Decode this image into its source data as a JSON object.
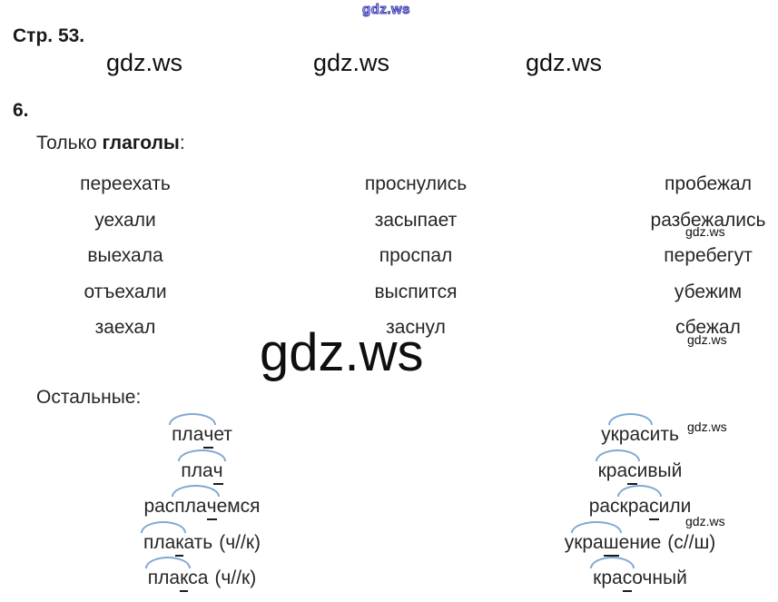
{
  "watermark": {
    "text": "gdz.ws"
  },
  "page": {
    "title": "Стр. 53.",
    "section": "6."
  },
  "verbs": {
    "label": {
      "prefix": "Только ",
      "bold": "глаголы",
      "suffix": ":"
    },
    "columns": [
      [
        "переехать",
        "уехали",
        "выехала",
        "отъехали",
        "заехал"
      ],
      [
        "проснулись",
        "засыпает",
        "проспал",
        "выспится",
        "заснул"
      ],
      [
        "пробежал",
        "разбежались",
        "перебегут",
        "убежим",
        "сбежал"
      ]
    ]
  },
  "others": {
    "label": "Остальные:",
    "left": [
      {
        "pre": "",
        "root": "плач",
        "post": "ет",
        "note": "",
        "underline_last": true
      },
      {
        "pre": "",
        "root": "плач",
        "post": "",
        "note": "",
        "underline_last": true
      },
      {
        "pre": "рас",
        "root": "плач",
        "post": "емся",
        "note": "",
        "underline_last": true
      },
      {
        "pre": "",
        "root": "плак",
        "post": "ать",
        "note": "(ч//к)",
        "underline_last": true
      },
      {
        "pre": "",
        "root": "плак",
        "post": "са",
        "note": "(ч//к)",
        "underline_last": true
      }
    ],
    "right": [
      {
        "pre": "у",
        "root": "крас",
        "post": "ить",
        "note": "",
        "underline_last": false
      },
      {
        "pre": "",
        "root": "крас",
        "post": "ивый",
        "note": "",
        "underline_last": true
      },
      {
        "pre": "рас",
        "root": "крас",
        "post": "или",
        "note": "",
        "underline_last": true
      },
      {
        "pre": "у",
        "root": "краш",
        "post": "ение",
        "note": "(с//ш)",
        "underline_last": true
      },
      {
        "pre": "",
        "root": "крас",
        "post": "очный",
        "note": "",
        "underline_last": true
      }
    ]
  },
  "colors": {
    "text": "#222222",
    "arc": "#7fa8d2",
    "underline": "#1c1c1c",
    "watermark": "#0f0f0f",
    "watermark_top": "#3a3ab0"
  }
}
